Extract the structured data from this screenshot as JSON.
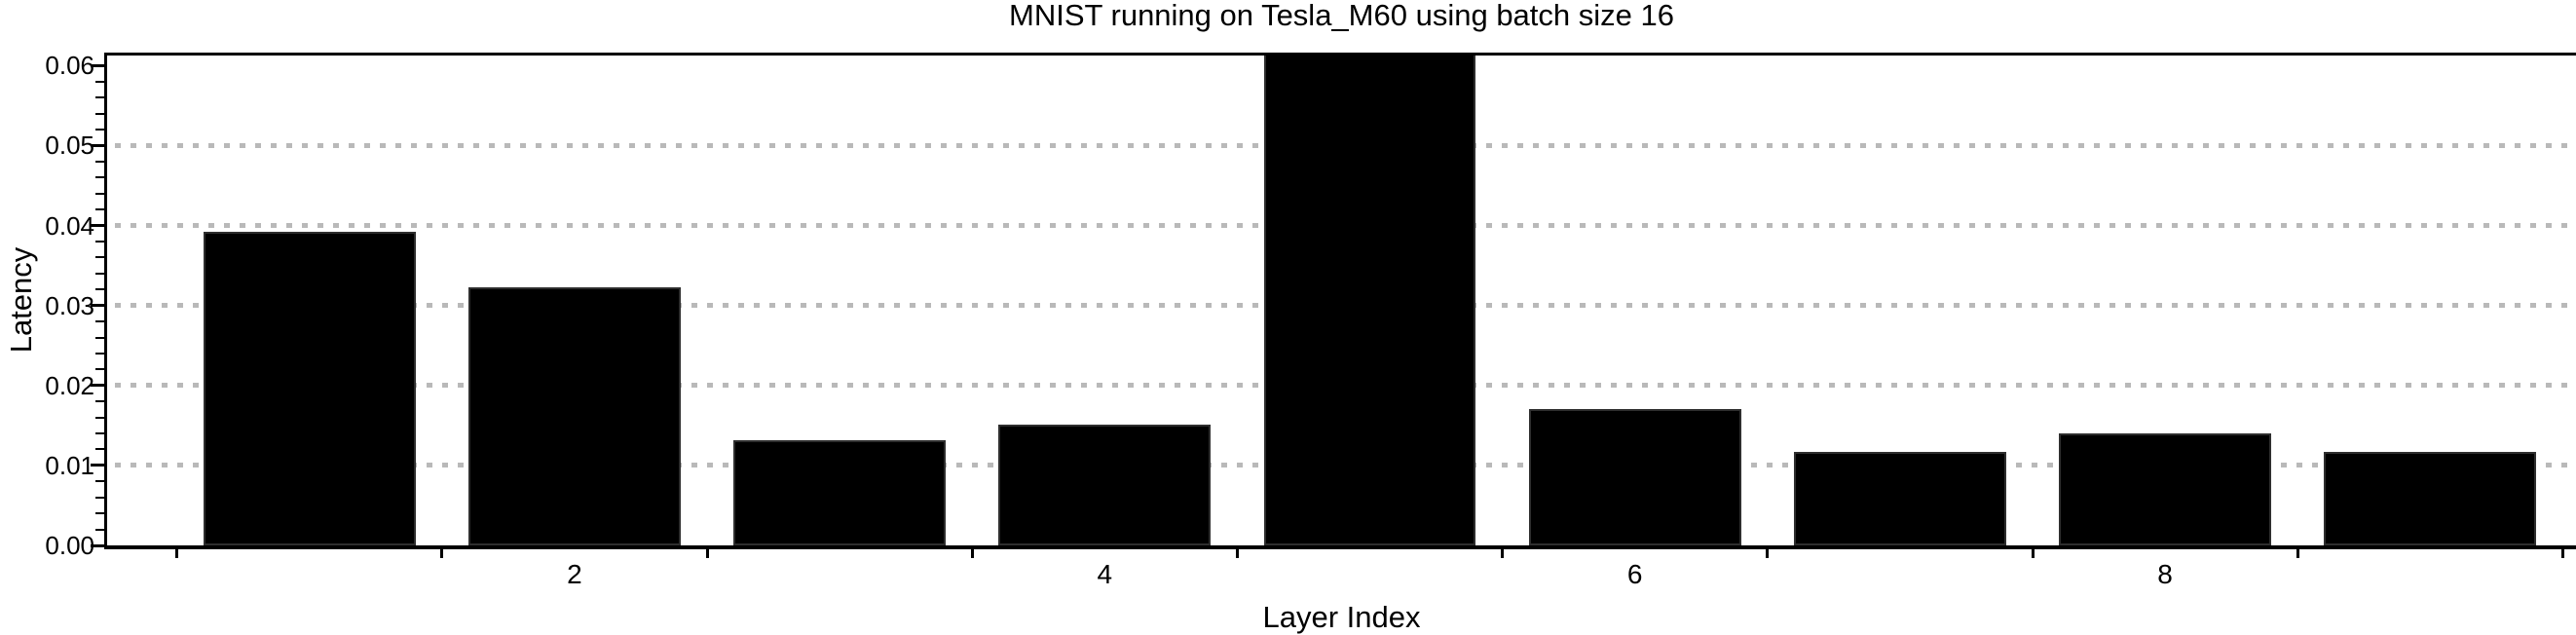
{
  "chart_data": {
    "type": "bar",
    "title": "MNIST running on Tesla_M60 using batch size 16",
    "xlabel": "Layer Index",
    "ylabel": "Latency",
    "x": [
      1,
      2,
      3,
      4,
      5,
      6,
      7,
      8,
      9
    ],
    "values": [
      0.0392,
      0.0323,
      0.0131,
      0.0151,
      0.0615,
      0.0171,
      0.0117,
      0.014,
      0.0117
    ],
    "bar_width_units": 0.8,
    "bar_color": "#000000",
    "bar_edge_color": "#2e2e2e",
    "grid_color": "#b9b9b9",
    "grid_style": "dotted",
    "grid_values": [
      0.01,
      0.02,
      0.03,
      0.04,
      0.05
    ],
    "ylim": [
      0,
      0.0615
    ],
    "xlim": [
      0.24,
      9.55
    ],
    "ytick_labels": [
      "0.00",
      "0.01",
      "0.02",
      "0.03",
      "0.04",
      "0.05",
      "0.06"
    ],
    "ytick_values": [
      0,
      0.01,
      0.02,
      0.03,
      0.04,
      0.05,
      0.06
    ],
    "y_minor_step": 0.002,
    "xtick_labels": [
      "2",
      "4",
      "6",
      "8"
    ],
    "xtick_values": [
      2,
      4,
      6,
      8
    ],
    "x_gap_tick_positions": [
      0.5,
      1.5,
      2.5,
      3.5,
      4.5,
      5.5,
      6.5,
      7.5,
      8.5,
      9.5
    ],
    "legend": null,
    "grid": "horizontal-only"
  }
}
